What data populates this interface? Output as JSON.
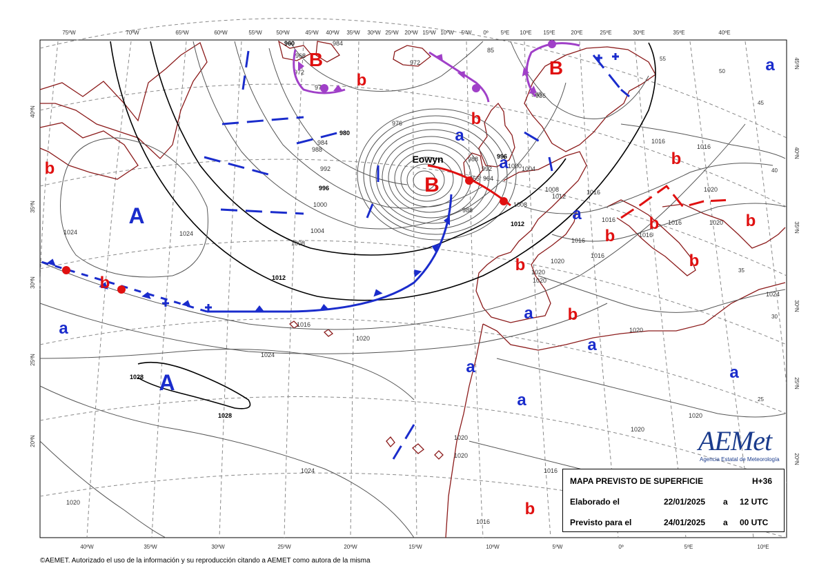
{
  "map": {
    "top_lon_labels": [
      "75ºW",
      "70ºW",
      "65ºW",
      "60ºW",
      "55ºW",
      "50ºW",
      "45ºW",
      "40ºW",
      "35ºW",
      "30ºW",
      "25ºW",
      "20ºW",
      "15ºW",
      "10ºW",
      "5ºW",
      "0º",
      "5ºE",
      "10ºE",
      "15ºE",
      "20ºE",
      "25ºE",
      "30ºE",
      "35ºE",
      "40ºE"
    ],
    "bottom_lon_labels": [
      "40ºW",
      "35ºW",
      "30ºW",
      "25ºW",
      "20ºW",
      "15ºW",
      "10ºW",
      "5ºW",
      "0º",
      "5ºE",
      "10ºE"
    ],
    "left_lat_labels": [
      "40ºN",
      "35ºN",
      "30ºN",
      "25ºN",
      "20ºN"
    ],
    "right_lat_labels": [
      "45ºN",
      "40ºN",
      "35ºN",
      "30ºN",
      "25ºN",
      "20ºN"
    ],
    "grid_inner_labels": [
      "55",
      "50",
      "45",
      "40",
      "35",
      "30",
      "25"
    ],
    "storm_name": "Eowyn",
    "high_symbol": "A",
    "low_symbol": "B",
    "rel_high": "a",
    "rel_low": "b",
    "isobars": [
      "960",
      "964",
      "968",
      "972",
      "976",
      "980",
      "984",
      "988",
      "992",
      "996",
      "1000",
      "1004",
      "1008",
      "1012",
      "1016",
      "1020",
      "1024",
      "1028"
    ],
    "colors": {
      "low": "#e01010",
      "high": "#1a2ccc",
      "warm": "#e01010",
      "cold": "#1a2ccc",
      "occluded": "#a040c8",
      "coast": "#8b1a1a",
      "grid": "#888888",
      "isobar": "#555555"
    }
  },
  "info": {
    "title": "MAPA PREVISTO DE SUPERFICIE",
    "hours": "H+36",
    "made_label": "Elaborado el",
    "made_date": "22/01/2025",
    "made_a": "a",
    "made_time": "12 UTC",
    "valid_label": "Previsto para el",
    "valid_date": "24/01/2025",
    "valid_a": "a",
    "valid_time": "00 UTC"
  },
  "logo": {
    "word": "AEMet",
    "subtitle": "Agencia Estatal de Meteorología"
  },
  "footer": "©AEMET. Autorizado el uso de la información y su reproducción citando a AEMET como autora de la misma"
}
